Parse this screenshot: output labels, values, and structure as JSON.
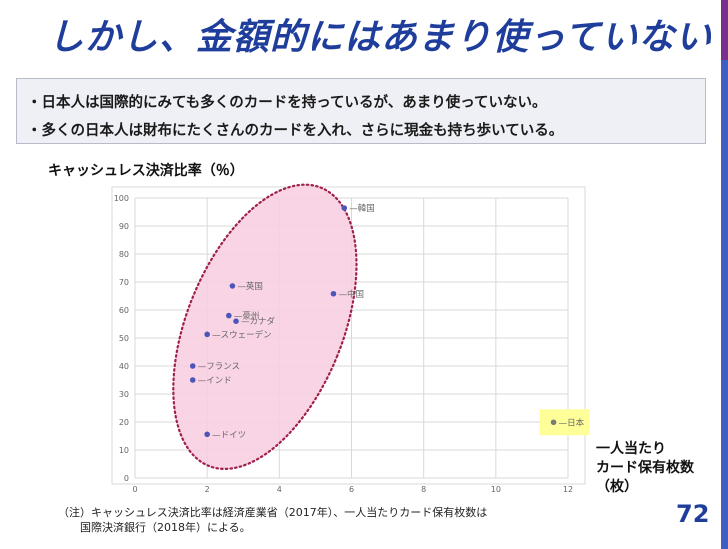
{
  "slide": {
    "title": "しかし、金額的にはあまり使っていない",
    "bullets": [
      "・日本人は国際的にみても多くのカードを持っているが、あまり使っていない。",
      "・多くの日本人は財布にたくさんのカードを入れ、さらに現金も持ち歩いている。"
    ],
    "note_line1": "（注）キャッシュレス決済比率は経済産業省（2017年）、一人当たりカード保有枚数は",
    "note_line2": "国際決済銀行（2018年）による。",
    "page_number": "72",
    "colors": {
      "title": "#1f3e9c",
      "highlight": "#ffff99",
      "ellipse_fill": "#f8cde0",
      "ellipse_stroke": "#a0204a",
      "dot": "#4e55b8"
    }
  },
  "chart_data": {
    "type": "scatter",
    "title": "キャッシュレス決済比率（％）",
    "xlabel_line1": "一人当たり",
    "xlabel_line2": "カード保有枚数",
    "xlabel_line3": "（枚）",
    "ylabel": "",
    "xlim": [
      0,
      12
    ],
    "ylim": [
      0,
      100
    ],
    "x_ticks": [
      0,
      2,
      4,
      6,
      8,
      10,
      12
    ],
    "y_ticks": [
      0,
      10,
      20,
      30,
      40,
      50,
      60,
      70,
      80,
      90,
      100
    ],
    "grid": true,
    "points": [
      {
        "label": "韓国",
        "x": 5.8,
        "y": 96.4
      },
      {
        "label": "英国",
        "x": 2.7,
        "y": 68.6
      },
      {
        "label": "中国",
        "x": 5.5,
        "y": 65.8
      },
      {
        "label": "豪州",
        "x": 2.6,
        "y": 58.0
      },
      {
        "label": "カナダ",
        "x": 2.8,
        "y": 56.0
      },
      {
        "label": "スウェーデン",
        "x": 2.0,
        "y": 51.3
      },
      {
        "label": "フランス",
        "x": 1.6,
        "y": 40.0
      },
      {
        "label": "インド",
        "x": 1.6,
        "y": 35.0
      },
      {
        "label": "日本",
        "x": 11.6,
        "y": 19.9
      },
      {
        "label": "ドイツ",
        "x": 2.0,
        "y": 15.6
      }
    ],
    "highlighted": "日本"
  }
}
